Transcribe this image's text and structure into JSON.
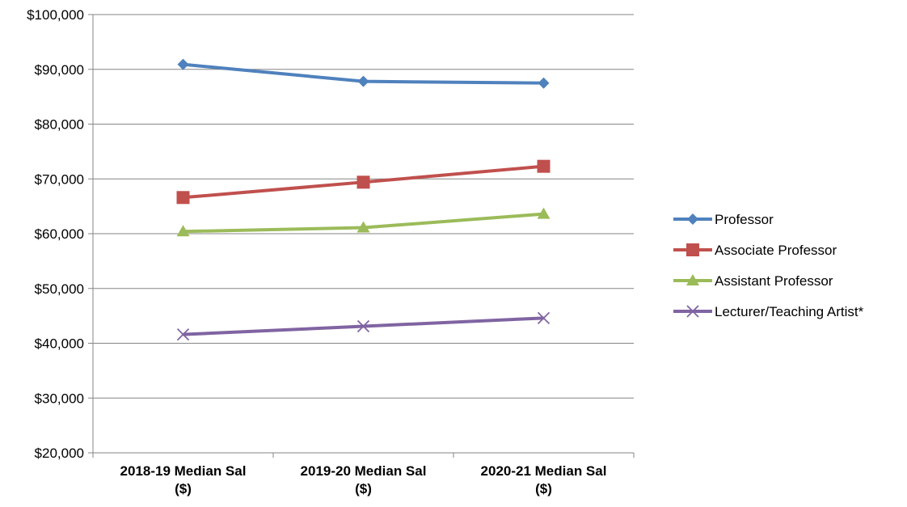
{
  "chart_data": {
    "type": "line",
    "categories": [
      "2018-19 Median Sal ($)",
      "2019-20 Median Sal ($)",
      "2020-21 Median Sal ($)"
    ],
    "category_lines": [
      [
        "2018-19 Median Sal",
        "($)"
      ],
      [
        "2019-20 Median Sal",
        "($)"
      ],
      [
        "2020-21 Median Sal",
        "($)"
      ]
    ],
    "ylim": [
      20000,
      100000
    ],
    "y_ticks": [
      "$20,000",
      "$30,000",
      "$40,000",
      "$50,000",
      "$60,000",
      "$70,000",
      "$80,000",
      "$90,000",
      "$100,000"
    ],
    "y_tick_values": [
      20000,
      30000,
      40000,
      50000,
      60000,
      70000,
      80000,
      90000,
      100000
    ],
    "grid": true,
    "legend_position": "right",
    "series": [
      {
        "name": "Professor",
        "values": [
          90900,
          87800,
          87500
        ],
        "color": "#4f81bd",
        "marker": "diamond"
      },
      {
        "name": "Associate Professor",
        "values": [
          66600,
          69400,
          72300
        ],
        "color": "#c0504d",
        "marker": "square"
      },
      {
        "name": "Assistant Professor",
        "values": [
          60400,
          61100,
          63600
        ],
        "color": "#9bbb59",
        "marker": "triangle"
      },
      {
        "name": "Lecturer/Teaching Artist*",
        "values": [
          41600,
          43100,
          44600
        ],
        "color": "#8064a2",
        "marker": "x"
      }
    ]
  }
}
